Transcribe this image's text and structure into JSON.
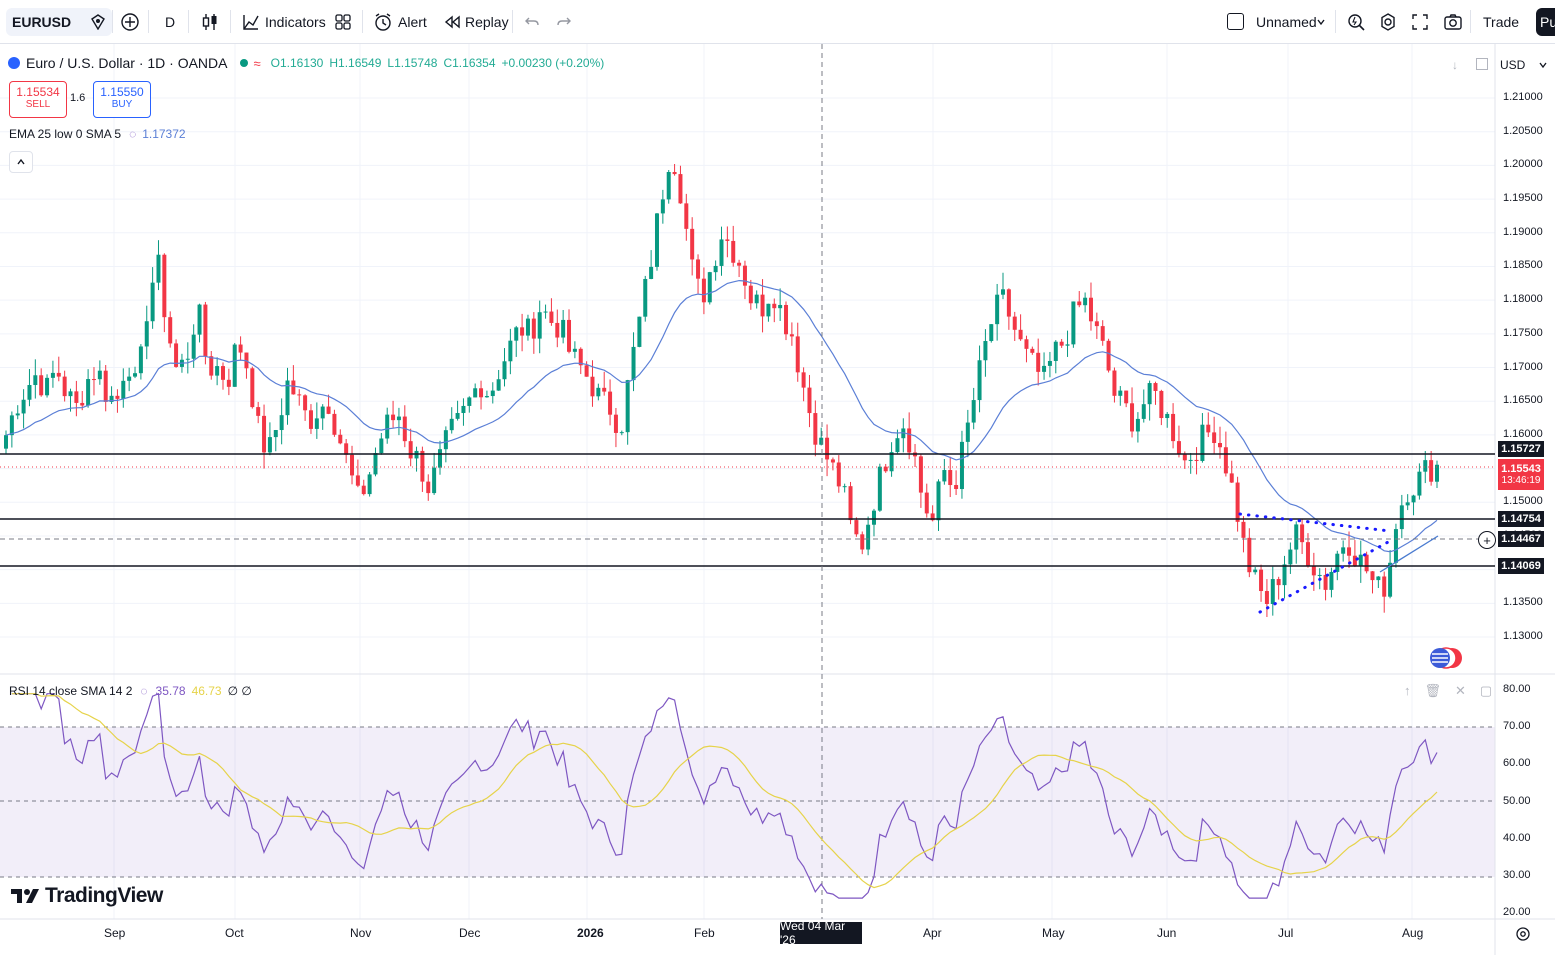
{
  "toolbar": {
    "symbol": "EURUSD",
    "interval": "D",
    "indicators_label": "Indicators",
    "alert_label": "Alert",
    "replay_label": "Replay",
    "layout_name": "Unnamed",
    "trade_label": "Trade",
    "publish_label": "Pu"
  },
  "legend": {
    "title": "Euro / U.S. Dollar · 1D · OANDA",
    "open": "O1.16130",
    "high": "H1.16549",
    "low": "L1.15748",
    "close": "C1.16354",
    "change": "+0.00230 (+0.20%)",
    "sell_price": "1.15534",
    "sell_label": "SELL",
    "spread": "1.6",
    "buy_price": "1.15550",
    "buy_label": "BUY",
    "ema_label": "EMA 25 low 0 SMA 5",
    "ema_value": "1.17372",
    "rsi_label": "RSI 14 close SMA 14 2",
    "rsi_value": "35.78",
    "rsi_sma_value": "46.73",
    "rsi_extra": "∅ ∅"
  },
  "price_axis": {
    "currency": "USD",
    "ticks": [
      "1.21000",
      "1.20500",
      "1.20000",
      "1.19500",
      "1.19000",
      "1.18500",
      "1.18000",
      "1.17500",
      "1.17000",
      "1.16500",
      "1.16000",
      "1.15500",
      "1.15000",
      "1.14500",
      "1.14000",
      "1.13500",
      "1.13000"
    ],
    "tags": {
      "level_top": "1.15727",
      "last_price": "1.15543",
      "countdown": "13:46:19",
      "level_mid": "1.14754",
      "crosshair": "1.14467",
      "level_low": "1.14069"
    }
  },
  "rsi_axis": {
    "ticks": [
      "80.00",
      "70.00",
      "60.00",
      "50.00",
      "40.00",
      "30.00",
      "20.00"
    ]
  },
  "time_axis": {
    "labels": [
      "Sep",
      "Oct",
      "Nov",
      "Dec",
      "2026",
      "Feb",
      "Apr",
      "May",
      "Jun",
      "Jul",
      "Aug"
    ],
    "crosshair_label": "Wed 04 Mar '26"
  },
  "branding": {
    "logo_text": "TradingView"
  },
  "chart_data": {
    "type": "candlestick",
    "symbol": "EURUSD",
    "timeframe": "1D",
    "y_range": [
      1.127,
      1.213
    ],
    "horizontal_levels": [
      1.15727,
      1.14754,
      1.14069
    ],
    "series_closes": [
      1.16,
      1.1645,
      1.167,
      1.169,
      1.1665,
      1.17,
      1.166,
      1.164,
      1.168,
      1.17,
      1.166,
      1.165,
      1.172,
      1.166,
      1.179,
      1.186,
      1.176,
      1.169,
      1.172,
      1.179,
      1.17,
      1.17,
      1.168,
      1.174,
      1.17,
      1.161,
      1.157,
      1.162,
      1.168,
      1.165,
      1.162,
      1.164,
      1.165,
      1.16,
      1.155,
      1.15,
      1.154,
      1.159,
      1.162,
      1.163,
      1.158,
      1.156,
      1.152,
      1.156,
      1.16,
      1.162,
      1.165,
      1.168,
      1.166,
      1.17,
      1.173,
      1.176,
      1.175,
      1.179,
      1.177,
      1.176,
      1.172,
      1.17,
      1.168,
      1.165,
      1.164,
      1.161,
      1.17,
      1.178,
      1.186,
      1.195,
      1.203,
      1.196,
      1.185,
      1.18,
      1.185,
      1.19,
      1.188,
      1.185,
      1.18,
      1.179,
      1.182,
      1.178,
      1.175,
      1.168,
      1.162,
      1.158,
      1.155,
      1.152,
      1.145,
      1.144,
      1.15,
      1.155,
      1.16,
      1.162,
      1.158,
      1.15,
      1.147,
      1.155,
      1.152,
      1.158,
      1.165,
      1.172,
      1.178,
      1.18,
      1.176,
      1.172,
      1.17,
      1.168,
      1.172,
      1.174,
      1.178,
      1.18,
      1.176,
      1.172,
      1.166,
      1.164,
      1.162,
      1.165,
      1.166,
      1.163,
      1.16,
      1.156,
      1.158,
      1.16,
      1.161,
      1.156,
      1.15,
      1.142,
      1.138,
      1.135,
      1.138,
      1.142,
      1.145,
      1.143,
      1.14,
      1.138,
      1.142,
      1.145,
      1.142,
      1.14,
      1.137,
      1.138,
      1.148,
      1.152,
      1.153,
      1.155,
      1.1554
    ],
    "rsi": {
      "period": 14,
      "levels": [
        70,
        50,
        30
      ],
      "y_range": [
        20,
        80
      ],
      "current": 35.78,
      "sma_current": 46.73
    }
  }
}
